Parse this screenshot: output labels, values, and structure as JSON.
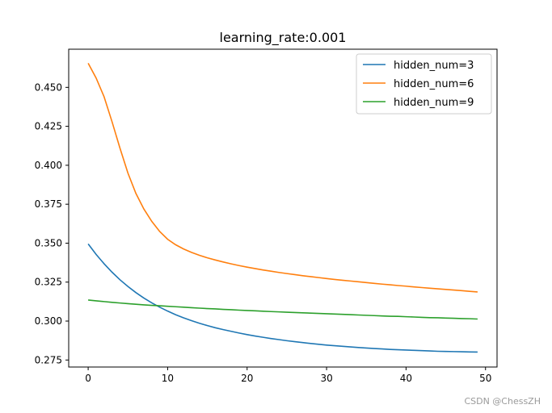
{
  "chart_data": {
    "type": "line",
    "title": "learning_rate:0.001",
    "xlabel": "",
    "ylabel": "",
    "xlim": [
      -2.45,
      51.45
    ],
    "ylim": [
      0.2705,
      0.4745
    ],
    "xticks": [
      0,
      10,
      20,
      30,
      40,
      50
    ],
    "xtick_labels": [
      "0",
      "10",
      "20",
      "30",
      "40",
      "50"
    ],
    "yticks": [
      0.275,
      0.3,
      0.325,
      0.35,
      0.375,
      0.4,
      0.425,
      0.45
    ],
    "ytick_labels": [
      "0.275",
      "0.300",
      "0.325",
      "0.350",
      "0.375",
      "0.400",
      "0.425",
      "0.450"
    ],
    "grid": false,
    "legend_position": "top-right",
    "x": [
      0,
      1,
      2,
      3,
      4,
      5,
      6,
      7,
      8,
      9,
      10,
      11,
      12,
      13,
      14,
      15,
      16,
      17,
      18,
      19,
      20,
      21,
      22,
      23,
      24,
      25,
      26,
      27,
      28,
      29,
      30,
      31,
      32,
      33,
      34,
      35,
      36,
      37,
      38,
      39,
      40,
      41,
      42,
      43,
      44,
      45,
      46,
      47,
      48,
      49
    ],
    "series": [
      {
        "name": "hidden_num=3",
        "color": "#1f77b4",
        "values": [
          0.3495,
          0.3428,
          0.3368,
          0.3314,
          0.3265,
          0.3222,
          0.3183,
          0.3148,
          0.3117,
          0.3089,
          0.3064,
          0.3041,
          0.3021,
          0.3003,
          0.2986,
          0.2971,
          0.2957,
          0.2945,
          0.2934,
          0.2923,
          0.2913,
          0.2904,
          0.2896,
          0.2888,
          0.2881,
          0.2874,
          0.2868,
          0.2862,
          0.2856,
          0.2851,
          0.2846,
          0.2842,
          0.2838,
          0.2834,
          0.283,
          0.2827,
          0.2824,
          0.2821,
          0.2818,
          0.2816,
          0.2814,
          0.2812,
          0.281,
          0.2808,
          0.2806,
          0.2805,
          0.2804,
          0.2803,
          0.2802,
          0.2801
        ]
      },
      {
        "name": "hidden_num=6",
        "color": "#ff7f0e",
        "values": [
          0.4655,
          0.456,
          0.444,
          0.428,
          0.411,
          0.395,
          0.382,
          0.372,
          0.364,
          0.3575,
          0.3525,
          0.349,
          0.3463,
          0.3441,
          0.3422,
          0.3406,
          0.3392,
          0.3379,
          0.3367,
          0.3356,
          0.3346,
          0.3337,
          0.3328,
          0.332,
          0.3312,
          0.3305,
          0.3298,
          0.3291,
          0.3285,
          0.3279,
          0.3273,
          0.3267,
          0.3262,
          0.3257,
          0.3252,
          0.3247,
          0.3242,
          0.3237,
          0.3233,
          0.3228,
          0.3224,
          0.3219,
          0.3215,
          0.3211,
          0.3207,
          0.3203,
          0.3199,
          0.3195,
          0.3191,
          0.3187
        ]
      },
      {
        "name": "hidden_num=9",
        "color": "#2ca02c",
        "values": [
          0.3135,
          0.313,
          0.3125,
          0.312,
          0.3116,
          0.3112,
          0.3108,
          0.3104,
          0.3101,
          0.3098,
          0.3095,
          0.3092,
          0.3089,
          0.3086,
          0.3083,
          0.308,
          0.3078,
          0.3075,
          0.3073,
          0.307,
          0.3068,
          0.3066,
          0.3063,
          0.3061,
          0.3059,
          0.3057,
          0.3055,
          0.3053,
          0.3051,
          0.3049,
          0.3047,
          0.3045,
          0.3043,
          0.3041,
          0.3039,
          0.3037,
          0.3035,
          0.3033,
          0.3031,
          0.303,
          0.3028,
          0.3026,
          0.3024,
          0.3022,
          0.3021,
          0.3019,
          0.3018,
          0.3016,
          0.3015,
          0.3013
        ]
      }
    ]
  },
  "watermark": "CSDN @ChessZH"
}
